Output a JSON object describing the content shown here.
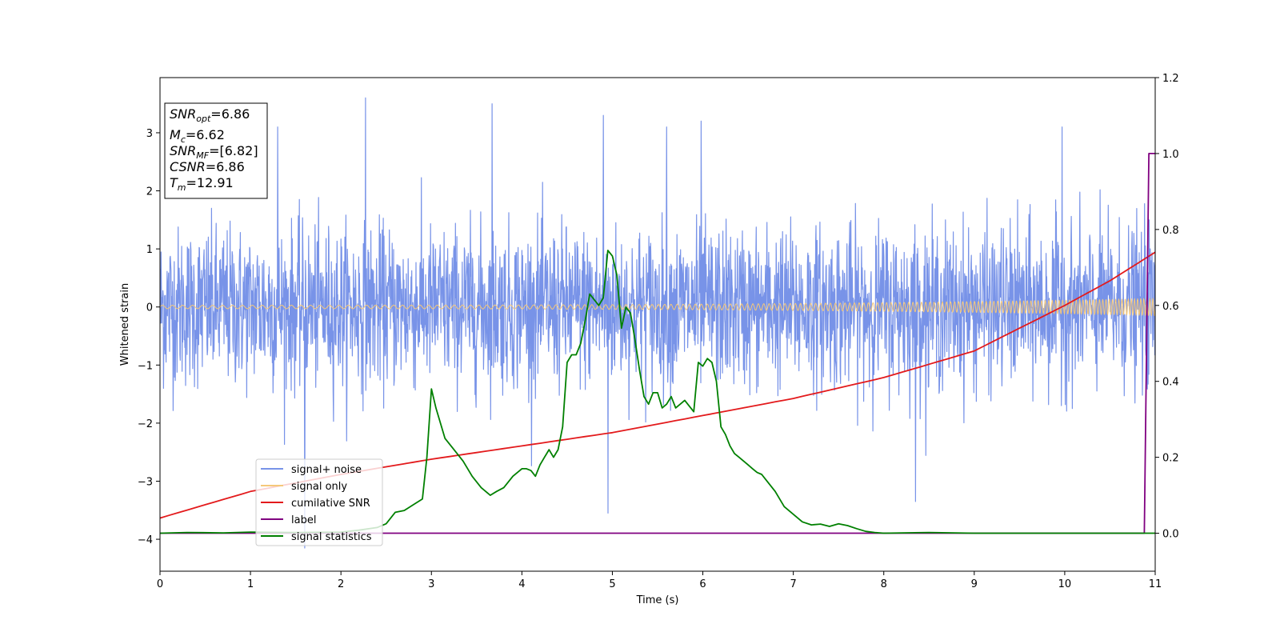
{
  "chart_data": {
    "type": "line",
    "title": "",
    "xlabel": "Time (s)",
    "ylabel": "Whitened strain",
    "xlim": [
      0,
      11
    ],
    "ylim_left": [
      -4.55,
      3.95
    ],
    "ylim_right": [
      -0.1,
      1.2
    ],
    "x_ticks": [
      0,
      1,
      2,
      3,
      4,
      5,
      6,
      7,
      8,
      9,
      10,
      11
    ],
    "y_ticks_left": [
      -4,
      -3,
      -2,
      -1,
      0,
      1,
      2,
      3
    ],
    "y_ticks_right": [
      0.0,
      0.2,
      0.4,
      0.6,
      0.8,
      1.0,
      1.2
    ],
    "grid": false,
    "legend_position": "lower-left",
    "info_box": {
      "snr_opt": {
        "main": "SNR",
        "sub": "opt",
        "value": "=6.86"
      },
      "mc": {
        "main": "M",
        "sub": "c",
        "value": "=6.62"
      },
      "snr_mf": {
        "main": "SNR",
        "sub": "MF",
        "value": "=[6.82]"
      },
      "csnr": {
        "main": "CSNR",
        "value": "=6.86"
      },
      "tm": {
        "main": "T",
        "sub": "m",
        "value": "=12.91"
      }
    },
    "series": [
      {
        "name": "signal+ noise",
        "axis": "left",
        "color": "#7893e8",
        "kind": "noise",
        "envelope": {
          "std": 0.68,
          "max": 3.6,
          "min": -4.15
        },
        "peaks": [
          [
            1.3,
            3.1
          ],
          [
            2.27,
            3.6
          ],
          [
            3.67,
            3.5
          ],
          [
            4.9,
            3.3
          ],
          [
            5.6,
            3.1
          ],
          [
            5.98,
            3.2
          ],
          [
            9.97,
            3.1
          ],
          [
            1.6,
            -4.15
          ],
          [
            4.95,
            -3.55
          ],
          [
            8.35,
            -3.35
          ]
        ]
      },
      {
        "name": "signal only",
        "axis": "left",
        "color": "#f5c87a",
        "kind": "chirp",
        "amplitude_start": 0.03,
        "amplitude_end": 0.15
      },
      {
        "name": "cumilative SNR",
        "axis": "right",
        "color": "#e31a1c",
        "x": [
          0,
          1,
          2,
          3,
          4,
          5,
          6,
          7,
          8,
          9,
          10,
          10.5,
          11
        ],
        "y": [
          0.04,
          0.11,
          0.155,
          0.195,
          0.23,
          0.265,
          0.31,
          0.355,
          0.41,
          0.48,
          0.6,
          0.665,
          0.74
        ]
      },
      {
        "name": "label",
        "axis": "right",
        "color": "#800080",
        "x": [
          0,
          10.88,
          10.93,
          11
        ],
        "y": [
          0.0,
          0.0,
          1.0,
          1.0
        ]
      },
      {
        "name": "signal statistics",
        "axis": "right",
        "color": "#008000",
        "x": [
          0,
          0.3,
          0.7,
          1.0,
          1.5,
          2.0,
          2.2,
          2.4,
          2.5,
          2.6,
          2.7,
          2.8,
          2.9,
          2.95,
          3.0,
          3.05,
          3.15,
          3.25,
          3.35,
          3.45,
          3.55,
          3.65,
          3.72,
          3.8,
          3.9,
          4.0,
          4.05,
          4.1,
          4.15,
          4.2,
          4.25,
          4.3,
          4.35,
          4.4,
          4.45,
          4.5,
          4.55,
          4.6,
          4.65,
          4.7,
          4.75,
          4.8,
          4.85,
          4.9,
          4.95,
          5.0,
          5.05,
          5.1,
          5.15,
          5.2,
          5.25,
          5.3,
          5.35,
          5.4,
          5.45,
          5.5,
          5.55,
          5.6,
          5.65,
          5.7,
          5.75,
          5.8,
          5.9,
          5.95,
          6.0,
          6.05,
          6.1,
          6.15,
          6.2,
          6.25,
          6.3,
          6.35,
          6.4,
          6.5,
          6.55,
          6.6,
          6.65,
          6.7,
          6.8,
          6.9,
          7.0,
          7.1,
          7.2,
          7.3,
          7.4,
          7.5,
          7.6,
          7.7,
          7.8,
          7.9,
          8.0,
          8.5,
          9.0,
          10.0,
          11.0
        ],
        "y": [
          0.0,
          0.002,
          0.001,
          0.003,
          0.002,
          0.003,
          0.008,
          0.015,
          0.025,
          0.055,
          0.06,
          0.075,
          0.09,
          0.2,
          0.38,
          0.33,
          0.25,
          0.22,
          0.19,
          0.15,
          0.12,
          0.1,
          0.11,
          0.12,
          0.15,
          0.17,
          0.17,
          0.165,
          0.15,
          0.18,
          0.2,
          0.22,
          0.2,
          0.22,
          0.28,
          0.45,
          0.47,
          0.47,
          0.5,
          0.56,
          0.63,
          0.615,
          0.6,
          0.62,
          0.745,
          0.73,
          0.68,
          0.54,
          0.595,
          0.58,
          0.51,
          0.43,
          0.36,
          0.34,
          0.37,
          0.37,
          0.33,
          0.34,
          0.36,
          0.33,
          0.34,
          0.35,
          0.32,
          0.45,
          0.44,
          0.46,
          0.45,
          0.4,
          0.28,
          0.26,
          0.23,
          0.21,
          0.2,
          0.18,
          0.17,
          0.16,
          0.155,
          0.14,
          0.11,
          0.07,
          0.05,
          0.03,
          0.022,
          0.024,
          0.018,
          0.025,
          0.02,
          0.012,
          0.005,
          0.002,
          0.0,
          0.002,
          0.0,
          0.0,
          0.0
        ]
      }
    ]
  }
}
